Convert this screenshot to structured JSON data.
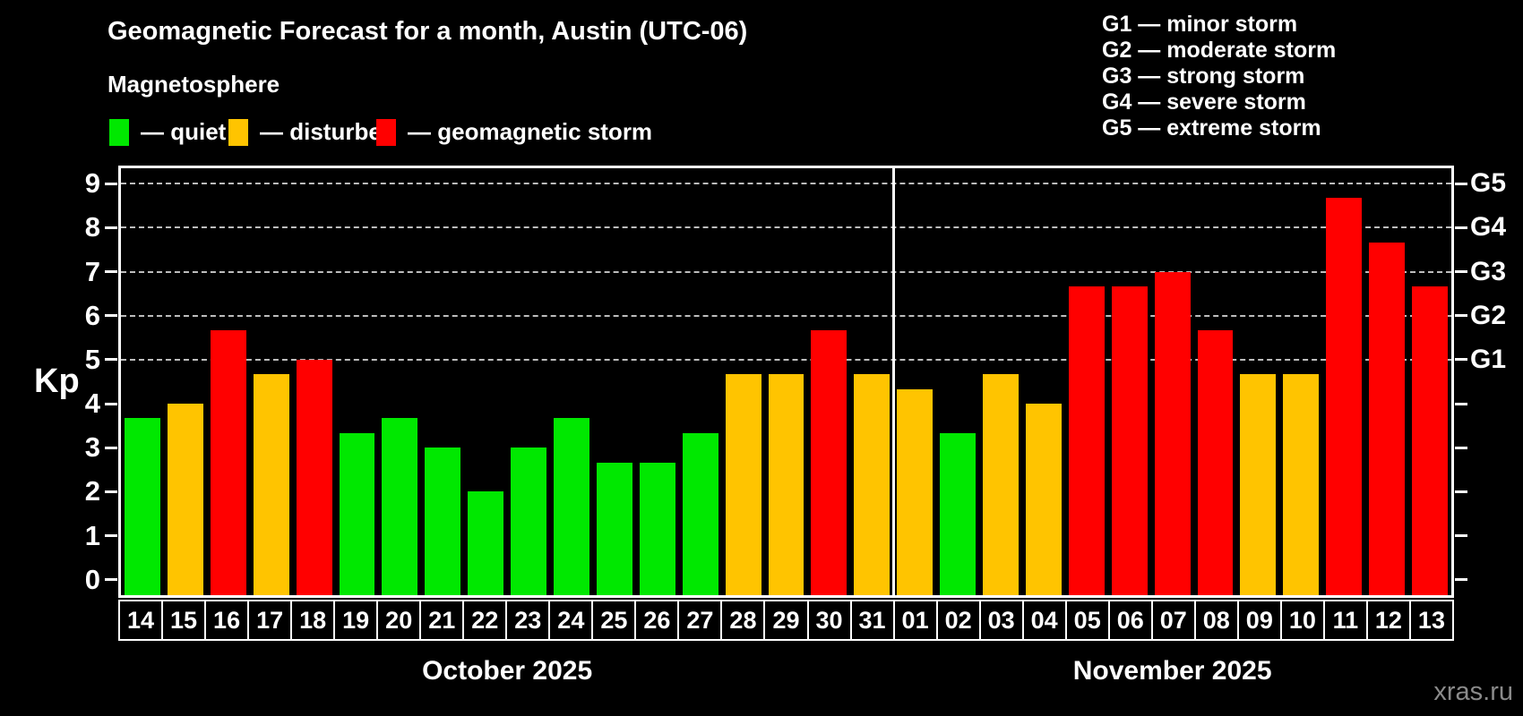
{
  "header": {
    "title": "Geomagnetic Forecast for a month, Austin (UTC-06)",
    "subtitle": "Magnetosphere",
    "legend_items": [
      {
        "key": "quiet",
        "label": "— quiet"
      },
      {
        "key": "disturbed",
        "label": "— disturbed"
      },
      {
        "key": "storm",
        "label": "— geomagnetic storm"
      }
    ],
    "g_scale_legend": [
      "G1 — minor storm",
      "G2 — moderate storm",
      "G3 — strong storm",
      "G4 — severe storm",
      "G5 — extreme storm"
    ]
  },
  "axes": {
    "y_label": "Kp",
    "y_ticks": [
      0,
      1,
      2,
      3,
      4,
      5,
      6,
      7,
      8,
      9
    ],
    "right_labels": [
      {
        "kp": 5,
        "label": "G1"
      },
      {
        "kp": 6,
        "label": "G2"
      },
      {
        "kp": 7,
        "label": "G3"
      },
      {
        "kp": 8,
        "label": "G4"
      },
      {
        "kp": 9,
        "label": "G5"
      }
    ]
  },
  "colors": {
    "quiet": "#00e800",
    "disturbed": "#ffc400",
    "storm": "#ff0000",
    "background": "#000000",
    "axis": "#ffffff",
    "grid": "#bdbdbd",
    "watermark": "#8a8a8a"
  },
  "watermark": "xras.ru",
  "chart_data": {
    "type": "bar",
    "title": "Geomagnetic Forecast for a month, Austin (UTC-06)",
    "ylabel": "Kp",
    "ylim": [
      -0.35,
      9.35
    ],
    "grid_kp_levels": [
      5,
      6,
      7,
      8,
      9
    ],
    "legend_position": "top",
    "month_sections": [
      {
        "label": "October 2025",
        "start": 0,
        "count": 18
      },
      {
        "label": "November 2025",
        "start": 18,
        "count": 13
      }
    ],
    "bars": [
      {
        "day": "14",
        "kp": 3.67,
        "status": "quiet"
      },
      {
        "day": "15",
        "kp": 4.0,
        "status": "disturbed"
      },
      {
        "day": "16",
        "kp": 5.67,
        "status": "storm"
      },
      {
        "day": "17",
        "kp": 4.67,
        "status": "disturbed"
      },
      {
        "day": "18",
        "kp": 5.0,
        "status": "storm"
      },
      {
        "day": "19",
        "kp": 3.33,
        "status": "quiet"
      },
      {
        "day": "20",
        "kp": 3.67,
        "status": "quiet"
      },
      {
        "day": "21",
        "kp": 3.0,
        "status": "quiet"
      },
      {
        "day": "22",
        "kp": 2.0,
        "status": "quiet"
      },
      {
        "day": "23",
        "kp": 3.0,
        "status": "quiet"
      },
      {
        "day": "24",
        "kp": 3.67,
        "status": "quiet"
      },
      {
        "day": "25",
        "kp": 2.67,
        "status": "quiet"
      },
      {
        "day": "26",
        "kp": 2.67,
        "status": "quiet"
      },
      {
        "day": "27",
        "kp": 3.33,
        "status": "quiet"
      },
      {
        "day": "28",
        "kp": 4.67,
        "status": "disturbed"
      },
      {
        "day": "29",
        "kp": 4.67,
        "status": "disturbed"
      },
      {
        "day": "30",
        "kp": 5.67,
        "status": "storm"
      },
      {
        "day": "31",
        "kp": 4.67,
        "status": "disturbed"
      },
      {
        "day": "01",
        "kp": 4.33,
        "status": "disturbed"
      },
      {
        "day": "02",
        "kp": 3.33,
        "status": "quiet"
      },
      {
        "day": "03",
        "kp": 4.67,
        "status": "disturbed"
      },
      {
        "day": "04",
        "kp": 4.0,
        "status": "disturbed"
      },
      {
        "day": "05",
        "kp": 6.67,
        "status": "storm"
      },
      {
        "day": "06",
        "kp": 6.67,
        "status": "storm"
      },
      {
        "day": "07",
        "kp": 7.0,
        "status": "storm"
      },
      {
        "day": "08",
        "kp": 5.67,
        "status": "storm"
      },
      {
        "day": "09",
        "kp": 4.67,
        "status": "disturbed"
      },
      {
        "day": "10",
        "kp": 4.67,
        "status": "disturbed"
      },
      {
        "day": "11",
        "kp": 8.67,
        "status": "storm"
      },
      {
        "day": "12",
        "kp": 7.67,
        "status": "storm"
      },
      {
        "day": "13",
        "kp": 6.67,
        "status": "storm"
      }
    ]
  }
}
